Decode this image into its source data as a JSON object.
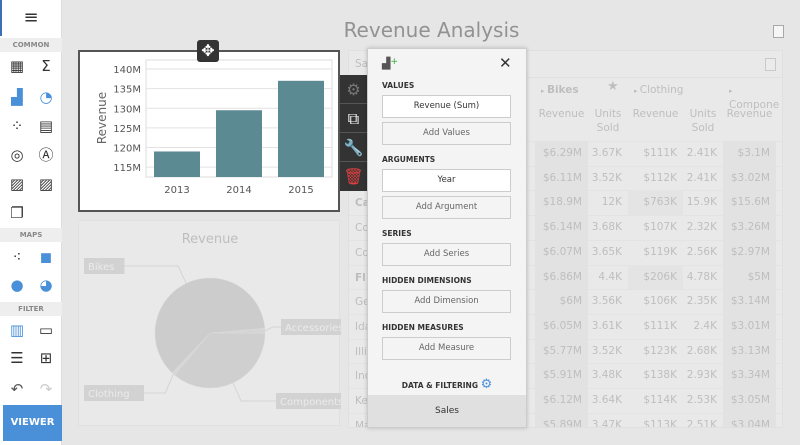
{
  "dashboard": {
    "title": "Revenue Analysis"
  },
  "toolbox": {
    "sections": [
      "COMMON",
      "MAPS",
      "FILTER"
    ],
    "common_items": [
      "grid-icon",
      "sigma-icon",
      "bar-chart-icon",
      "pie-chart-icon",
      "scatter-icon",
      "cards-icon",
      "gauge-icon",
      "text-box-icon",
      "image-icon",
      "bound-image-icon",
      "group-icon"
    ],
    "map_items": [
      "geo-point-map-icon",
      "choropleth-map-icon",
      "bubble-map-icon",
      "pie-map-icon"
    ],
    "filter_items": [
      "range-filter-icon",
      "combo-box-icon",
      "list-box-icon",
      "tree-view-icon"
    ],
    "viewer_label": "VIEWER",
    "accent": "#4a90d9"
  },
  "bar_chart": {
    "chart_data": {
      "type": "bar",
      "categories": [
        "2013",
        "2014",
        "2015"
      ],
      "values": [
        119,
        129.5,
        137
      ],
      "ylabel": "Revenue",
      "yticks": [
        "115M",
        "120M",
        "125M",
        "130M",
        "135M",
        "140M"
      ],
      "ytick_values": [
        115,
        120,
        125,
        130,
        135,
        140
      ],
      "ylim": [
        112.5,
        142.3
      ],
      "grid": true,
      "color": "#5b8a93"
    }
  },
  "pie_chart": {
    "chart_data": {
      "type": "pie",
      "title": "Revenue",
      "categories": [
        "Accessories",
        "Components",
        "Clothing",
        "Bikes"
      ],
      "values": [
        1.5,
        36,
        1,
        61.5
      ]
    }
  },
  "grid": {
    "title_partial": "Sa",
    "column_groups": [
      "Bikes",
      "Clothing",
      "Compone"
    ],
    "subheaders": [
      "Revenue",
      "Units Sold",
      "Revenue",
      "Units Sold",
      "Revenue"
    ],
    "row_names": [
      "",
      "",
      "Ca",
      "Co",
      "Co",
      "Fl",
      "Ge",
      "Ida",
      "Illi",
      "Ind",
      "Ke",
      "Ma"
    ],
    "rows": [
      [
        "$6.29M",
        "3.67K",
        "$111K",
        "2.41K",
        "$3.1M"
      ],
      [
        "$6.11M",
        "3.52K",
        "$112K",
        "2.41K",
        "$3.02M"
      ],
      [
        "$18.9M",
        "12K",
        "$763K",
        "15.9K",
        "$15.6M"
      ],
      [
        "$6.14M",
        "3.68K",
        "$107K",
        "2.32K",
        "$3.26M"
      ],
      [
        "$6.07M",
        "3.65K",
        "$119K",
        "2.56K",
        "$2.97M"
      ],
      [
        "$6.86M",
        "4.4K",
        "$206K",
        "4.78K",
        "$5M"
      ],
      [
        "$6M",
        "3.56K",
        "$106K",
        "2.35K",
        "$3.14M"
      ],
      [
        "$6.05M",
        "3.61K",
        "$111K",
        "2.4K",
        "$3.01M"
      ],
      [
        "$5.77M",
        "3.52K",
        "$123K",
        "2.68K",
        "$3.13M"
      ],
      [
        "$5.91M",
        "3.48K",
        "$138K",
        "2.93K",
        "$3.34M"
      ],
      [
        "$6.12M",
        "3.64K",
        "$114K",
        "2.53K",
        "$3.05M"
      ],
      [
        "$5.89M",
        "3.47K",
        "$113K",
        "2.51K",
        "$3.04M"
      ]
    ]
  },
  "binding_panel": {
    "sections": [
      {
        "label": "VALUES",
        "items": [
          "Revenue (Sum)"
        ],
        "add": "Add Values"
      },
      {
        "label": "ARGUMENTS",
        "items": [
          "Year"
        ],
        "add": "Add Argument"
      },
      {
        "label": "SERIES",
        "items": [],
        "add": "Add Series"
      },
      {
        "label": "HIDDEN DIMENSIONS",
        "items": [],
        "add": "Add Dimension"
      },
      {
        "label": "HIDDEN MEASURES",
        "items": [],
        "add": "Add Measure"
      }
    ],
    "footer_link": "DATA & FILTERING",
    "data_source": "Sales"
  }
}
